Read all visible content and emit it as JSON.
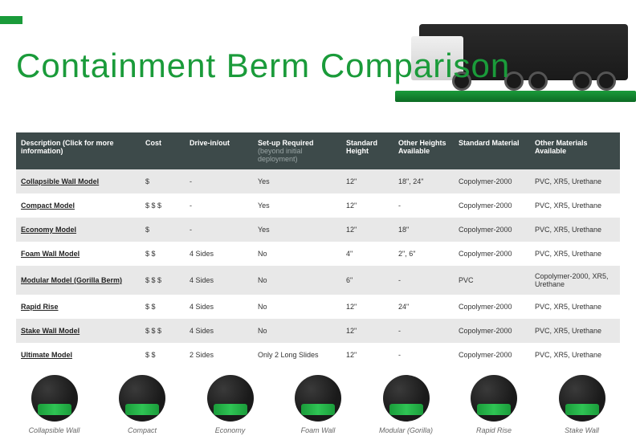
{
  "page": {
    "title": "Containment Berm Comparison",
    "title_color": "#1a9b3a",
    "accent_color": "#1a9b3a"
  },
  "table": {
    "headers": {
      "description": "Description (Click for more information)",
      "cost": "Cost",
      "drive": "Drive-in/out",
      "setup_main": "Set-up Required ",
      "setup_sub": "(beyond initial deployment)",
      "std_height": "Standard Height",
      "other_heights": "Other Heights Available",
      "std_material": "Standard Material",
      "other_materials": "Other Materials Available"
    },
    "header_bg": "#3d4a4a",
    "header_fg": "#ffffff",
    "row_odd_bg": "#e8e8e8",
    "row_even_bg": "#ffffff",
    "rows": [
      {
        "description": "Collapsible Wall Model",
        "cost": "$",
        "drive": "-",
        "setup": "Yes",
        "std_height": "12\"",
        "other_heights": "18\", 24\"",
        "std_material": "Copolymer-2000",
        "other_materials": "PVC, XR5, Urethane"
      },
      {
        "description": "Compact Model",
        "cost": "$ $ $",
        "drive": "-",
        "setup": "Yes",
        "std_height": "12\"",
        "other_heights": "-",
        "std_material": "Copolymer-2000",
        "other_materials": "PVC, XR5, Urethane"
      },
      {
        "description": "Economy Model",
        "cost": "$",
        "drive": "-",
        "setup": "Yes",
        "std_height": "12\"",
        "other_heights": "18\"",
        "std_material": "Copolymer-2000",
        "other_materials": "PVC, XR5, Urethane"
      },
      {
        "description": "Foam Wall Model",
        "cost": "$ $",
        "drive": "4 Sides",
        "setup": "No",
        "std_height": "4\"",
        "other_heights": "2\", 6\"",
        "std_material": "Copolymer-2000",
        "other_materials": "PVC, XR5, Urethane"
      },
      {
        "description": "Modular Model (Gorilla Berm)",
        "cost": "$ $ $",
        "drive": "4 Sides",
        "setup": "No",
        "std_height": "6\"",
        "other_heights": "-",
        "std_material": "PVC",
        "other_materials": "Copolymer-2000, XR5, Urethane"
      },
      {
        "description": "Rapid Rise",
        "cost": "$ $",
        "drive": "4 Sides",
        "setup": "No",
        "std_height": "12\"",
        "other_heights": "24\"",
        "std_material": "Copolymer-2000",
        "other_materials": "PVC, XR5, Urethane"
      },
      {
        "description": "Stake Wall Model",
        "cost": "$ $ $",
        "drive": "4 Sides",
        "setup": "No",
        "std_height": "12\"",
        "other_heights": "-",
        "std_material": "Copolymer-2000",
        "other_materials": "PVC, XR5, Urethane"
      },
      {
        "description": "Ultimate Model",
        "cost": "$ $",
        "drive": "2 Sides",
        "setup": "Only 2 Long Slides",
        "std_height": "12\"",
        "other_heights": "-",
        "std_material": "Copolymer-2000",
        "other_materials": "PVC, XR5, Urethane"
      }
    ]
  },
  "thumbnails": [
    {
      "label": "Collapsible Wall"
    },
    {
      "label": "Compact"
    },
    {
      "label": "Economy"
    },
    {
      "label": "Foam Wall"
    },
    {
      "label": "Modular (Gorilla)"
    },
    {
      "label": "Rapid Rise"
    },
    {
      "label": "Stake Wall"
    }
  ]
}
